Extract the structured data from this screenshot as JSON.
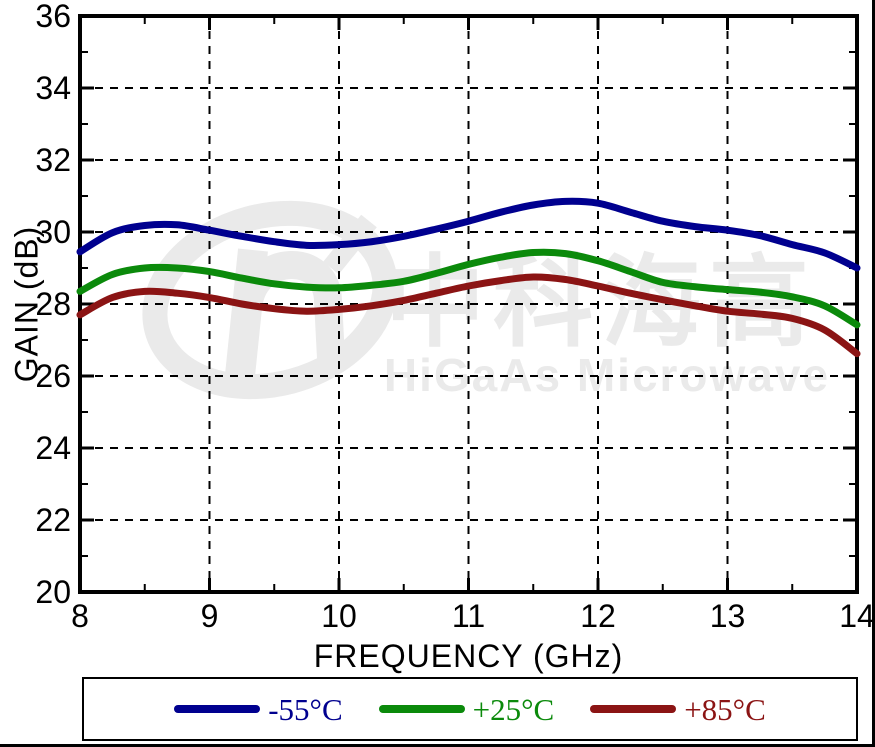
{
  "figure": {
    "watermark": {
      "cjk_text": "中科海高",
      "latin_text": "HiGaAs Microwave",
      "color": "#EAEAEA"
    }
  },
  "chart_data": {
    "type": "line",
    "title": "",
    "xlabel": "FREQUENCY (GHz)",
    "ylabel": "GAIN (dB)",
    "xlim": [
      8,
      14
    ],
    "ylim": [
      20,
      36
    ],
    "xticks": [
      8,
      9,
      10,
      11,
      12,
      13,
      14
    ],
    "yticks": [
      20,
      22,
      24,
      26,
      28,
      30,
      32,
      34,
      36
    ],
    "x_minor_step": 0.5,
    "y_minor_step": 1,
    "grid": "dashed",
    "legend_position": "bottom-box",
    "x": [
      8,
      8.25,
      8.5,
      8.75,
      9,
      9.25,
      9.5,
      9.75,
      10,
      10.25,
      10.5,
      10.75,
      11,
      11.25,
      11.5,
      11.75,
      12,
      12.25,
      12.5,
      12.75,
      13,
      13.25,
      13.5,
      13.75,
      14
    ],
    "series": [
      {
        "name": "-55°C",
        "color": "#00008F",
        "values": [
          29.45,
          29.98,
          30.18,
          30.2,
          30.05,
          29.88,
          29.73,
          29.63,
          29.65,
          29.73,
          29.88,
          30.08,
          30.3,
          30.55,
          30.75,
          30.85,
          30.8,
          30.55,
          30.3,
          30.15,
          30.05,
          29.9,
          29.65,
          29.42,
          29.0
        ]
      },
      {
        "name": "+25°C",
        "color": "#0B8A0B",
        "values": [
          28.35,
          28.82,
          29.0,
          29.0,
          28.9,
          28.72,
          28.56,
          28.47,
          28.45,
          28.52,
          28.63,
          28.85,
          29.1,
          29.3,
          29.43,
          29.4,
          29.2,
          28.9,
          28.6,
          28.48,
          28.4,
          28.33,
          28.2,
          27.95,
          27.42
        ]
      },
      {
        "name": "+85°C",
        "color": "#8B1414",
        "values": [
          27.7,
          28.18,
          28.35,
          28.3,
          28.18,
          28.0,
          27.87,
          27.8,
          27.85,
          27.95,
          28.1,
          28.3,
          28.5,
          28.65,
          28.75,
          28.68,
          28.5,
          28.3,
          28.12,
          27.95,
          27.8,
          27.72,
          27.6,
          27.28,
          26.62
        ]
      }
    ]
  }
}
